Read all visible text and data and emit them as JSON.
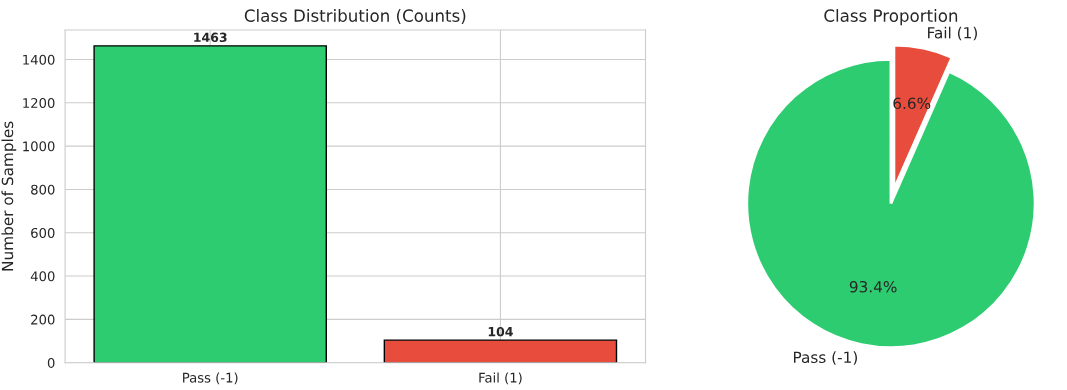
{
  "chart_data": [
    {
      "type": "bar",
      "title": "Class Distribution (Counts)",
      "ylabel": "Number of Samples",
      "categories": [
        "Pass (-1)",
        "Fail (1)"
      ],
      "values": [
        1463,
        104
      ],
      "colors": [
        "#2ecc71",
        "#e74c3c"
      ],
      "ylim": [
        0,
        1536
      ],
      "yticks": [
        0,
        200,
        400,
        600,
        800,
        1000,
        1200,
        1400
      ],
      "grid": true,
      "data_labels": true
    },
    {
      "type": "pie",
      "title": "Class Proportion",
      "categories": [
        "Pass (-1)",
        "Fail (1)"
      ],
      "values": [
        93.4,
        6.6
      ],
      "colors": [
        "#2ecc71",
        "#e74c3c"
      ],
      "value_labels": [
        "93.4%",
        "6.6%"
      ]
    }
  ]
}
